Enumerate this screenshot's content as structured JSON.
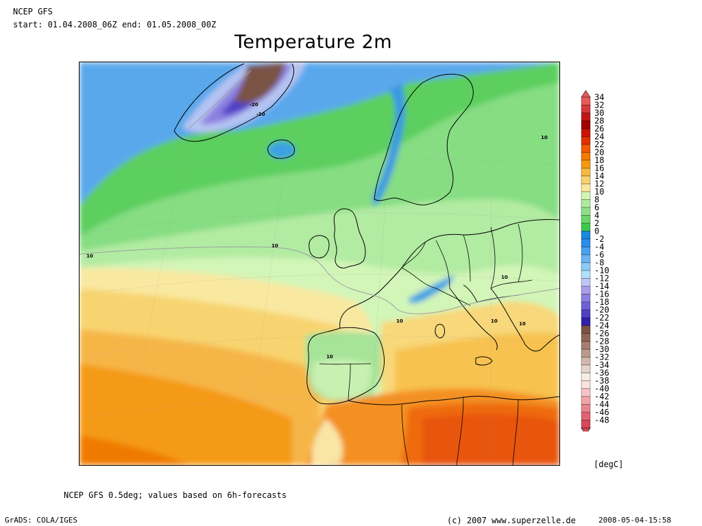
{
  "header": {
    "source": "NCEP GFS",
    "period": "start: 01.04.2008_06Z end: 01.05.2008_00Z",
    "title": "Temperature 2m"
  },
  "map": {
    "region": "Europe / North Atlantic",
    "contour_labels": [
      "-20",
      "-10",
      "10",
      "10",
      "10",
      "10",
      "10",
      "10",
      "10",
      "10"
    ]
  },
  "legend": {
    "unit": "[degC]",
    "levels": [
      {
        "label": "34",
        "color": "#e85a5a"
      },
      {
        "label": "32",
        "color": "#d43a3a"
      },
      {
        "label": "30",
        "color": "#c01818"
      },
      {
        "label": "28",
        "color": "#a00000"
      },
      {
        "label": "26",
        "color": "#c81400"
      },
      {
        "label": "24",
        "color": "#e03000"
      },
      {
        "label": "22",
        "color": "#f05a00"
      },
      {
        "label": "20",
        "color": "#f47a00"
      },
      {
        "label": "18",
        "color": "#f59a10"
      },
      {
        "label": "16",
        "color": "#f7b840"
      },
      {
        "label": "14",
        "color": "#f8d26e"
      },
      {
        "label": "12",
        "color": "#f9e89c"
      },
      {
        "label": "10",
        "color": "#d2f5b4"
      },
      {
        "label": "8",
        "color": "#b0eaa0"
      },
      {
        "label": "6",
        "color": "#8ee08a"
      },
      {
        "label": "4",
        "color": "#68d66a"
      },
      {
        "label": "2",
        "color": "#3cc84c"
      },
      {
        "label": "0",
        "color": "#1a88e0"
      },
      {
        "label": "-2",
        "color": "#2a8ee8"
      },
      {
        "label": "-4",
        "color": "#48a0ee"
      },
      {
        "label": "-6",
        "color": "#6ab4f2"
      },
      {
        "label": "-8",
        "color": "#8ccaf6"
      },
      {
        "label": "-10",
        "color": "#b0e0fa"
      },
      {
        "label": "-12",
        "color": "#c0c6f4"
      },
      {
        "label": "-14",
        "color": "#a89eea"
      },
      {
        "label": "-16",
        "color": "#8c80e0"
      },
      {
        "label": "-18",
        "color": "#7060d4"
      },
      {
        "label": "-20",
        "color": "#5040c4"
      },
      {
        "label": "-22",
        "color": "#3020a8"
      },
      {
        "label": "-24",
        "color": "#7a5244"
      },
      {
        "label": "-26",
        "color": "#8e6656"
      },
      {
        "label": "-28",
        "color": "#a47e6e"
      },
      {
        "label": "-30",
        "color": "#ba9a8a"
      },
      {
        "label": "-32",
        "color": "#d0b8aa"
      },
      {
        "label": "-34",
        "color": "#e4d4ca"
      },
      {
        "label": "-36",
        "color": "#f6ece6"
      },
      {
        "label": "-38",
        "color": "#fae0e0"
      },
      {
        "label": "-40",
        "color": "#f6c4c8"
      },
      {
        "label": "-42",
        "color": "#f0a4aa"
      },
      {
        "label": "-44",
        "color": "#e8848c"
      },
      {
        "label": "-46",
        "color": "#e06470"
      },
      {
        "label": "-48",
        "color": "#d84858"
      }
    ]
  },
  "footer": {
    "note": "NCEP GFS 0.5deg; values based on 6h-forecasts",
    "software": "GrADS: COLA/IGES",
    "copyright": "(c) 2007 www.superzelle.de",
    "timestamp": "2008-05-04-15:58"
  }
}
